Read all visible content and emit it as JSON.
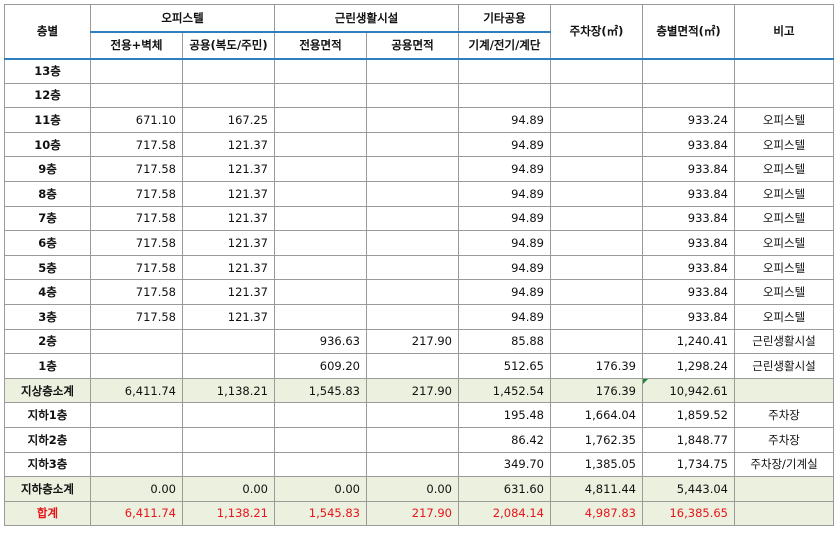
{
  "headers": {
    "floor": "층별",
    "officetel": "오피스텔",
    "officetel_exclusive": "전용+벽체",
    "officetel_common": "공용(복도/주민)",
    "retail": "근린생활시설",
    "retail_exclusive": "전용면적",
    "retail_common": "공용면적",
    "other_common": "기타공용",
    "other_common_sub": "기계/전기/계단",
    "parking": "주차장(㎡)",
    "floor_area": "층별면적(㎡)",
    "note": "비고"
  },
  "rows": [
    {
      "floor": "13층",
      "off_ex": "",
      "off_co": "",
      "ret_ex": "",
      "ret_co": "",
      "other": "",
      "parking": "",
      "area": "",
      "note": "",
      "type": "normal"
    },
    {
      "floor": "12층",
      "off_ex": "",
      "off_co": "",
      "ret_ex": "",
      "ret_co": "",
      "other": "",
      "parking": "",
      "area": "",
      "note": "",
      "type": "normal"
    },
    {
      "floor": "11층",
      "off_ex": "671.10",
      "off_co": "167.25",
      "ret_ex": "",
      "ret_co": "",
      "other": "94.89",
      "parking": "",
      "area": "933.24",
      "note": "오피스텔",
      "type": "normal"
    },
    {
      "floor": "10층",
      "off_ex": "717.58",
      "off_co": "121.37",
      "ret_ex": "",
      "ret_co": "",
      "other": "94.89",
      "parking": "",
      "area": "933.84",
      "note": "오피스텔",
      "type": "normal"
    },
    {
      "floor": "9층",
      "off_ex": "717.58",
      "off_co": "121.37",
      "ret_ex": "",
      "ret_co": "",
      "other": "94.89",
      "parking": "",
      "area": "933.84",
      "note": "오피스텔",
      "type": "normal"
    },
    {
      "floor": "8층",
      "off_ex": "717.58",
      "off_co": "121.37",
      "ret_ex": "",
      "ret_co": "",
      "other": "94.89",
      "parking": "",
      "area": "933.84",
      "note": "오피스텔",
      "type": "normal"
    },
    {
      "floor": "7층",
      "off_ex": "717.58",
      "off_co": "121.37",
      "ret_ex": "",
      "ret_co": "",
      "other": "94.89",
      "parking": "",
      "area": "933.84",
      "note": "오피스텔",
      "type": "normal"
    },
    {
      "floor": "6층",
      "off_ex": "717.58",
      "off_co": "121.37",
      "ret_ex": "",
      "ret_co": "",
      "other": "94.89",
      "parking": "",
      "area": "933.84",
      "note": "오피스텔",
      "type": "normal"
    },
    {
      "floor": "5층",
      "off_ex": "717.58",
      "off_co": "121.37",
      "ret_ex": "",
      "ret_co": "",
      "other": "94.89",
      "parking": "",
      "area": "933.84",
      "note": "오피스텔",
      "type": "normal"
    },
    {
      "floor": "4층",
      "off_ex": "717.58",
      "off_co": "121.37",
      "ret_ex": "",
      "ret_co": "",
      "other": "94.89",
      "parking": "",
      "area": "933.84",
      "note": "오피스텔",
      "type": "normal"
    },
    {
      "floor": "3층",
      "off_ex": "717.58",
      "off_co": "121.37",
      "ret_ex": "",
      "ret_co": "",
      "other": "94.89",
      "parking": "",
      "area": "933.84",
      "note": "오피스텔",
      "type": "normal"
    },
    {
      "floor": "2층",
      "off_ex": "",
      "off_co": "",
      "ret_ex": "936.63",
      "ret_co": "217.90",
      "other": "85.88",
      "parking": "",
      "area": "1,240.41",
      "note": "근린생활시설",
      "type": "normal"
    },
    {
      "floor": "1층",
      "off_ex": "",
      "off_co": "",
      "ret_ex": "609.20",
      "ret_co": "",
      "other": "512.65",
      "parking": "176.39",
      "area": "1,298.24",
      "note": "근린생활시설",
      "type": "normal"
    },
    {
      "floor": "지상층소계",
      "off_ex": "6,411.74",
      "off_co": "1,138.21",
      "ret_ex": "1,545.83",
      "ret_co": "217.90",
      "other": "1,452.54",
      "parking": "176.39",
      "area": "10,942.61",
      "note": "",
      "type": "sub"
    },
    {
      "floor": "지하1층",
      "off_ex": "",
      "off_co": "",
      "ret_ex": "",
      "ret_co": "",
      "other": "195.48",
      "parking": "1,664.04",
      "area": "1,859.52",
      "note": "주차장",
      "type": "normal"
    },
    {
      "floor": "지하2층",
      "off_ex": "",
      "off_co": "",
      "ret_ex": "",
      "ret_co": "",
      "other": "86.42",
      "parking": "1,762.35",
      "area": "1,848.77",
      "note": "주차장",
      "type": "normal"
    },
    {
      "floor": "지하3층",
      "off_ex": "",
      "off_co": "",
      "ret_ex": "",
      "ret_co": "",
      "other": "349.70",
      "parking": "1,385.05",
      "area": "1,734.75",
      "note": "주차장/기계실",
      "type": "normal"
    },
    {
      "floor": "지하층소계",
      "off_ex": "0.00",
      "off_co": "0.00",
      "ret_ex": "0.00",
      "ret_co": "0.00",
      "other": "631.60",
      "parking": "4,811.44",
      "area": "5,443.04",
      "note": "",
      "type": "sub"
    },
    {
      "floor": "합계",
      "off_ex": "6,411.74",
      "off_co": "1,138.21",
      "ret_ex": "1,545.83",
      "ret_co": "217.90",
      "other": "2,084.14",
      "parking": "4,987.83",
      "area": "16,385.65",
      "note": "",
      "type": "total"
    }
  ],
  "colors": {
    "subtotal_bg": "#ebf1de",
    "total_text": "#e8141a",
    "header_rule": "#2d7fc1",
    "grid": "#9a9a9a"
  }
}
